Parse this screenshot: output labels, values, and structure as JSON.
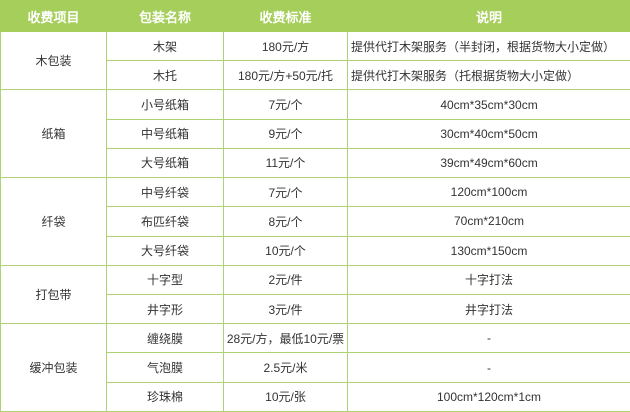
{
  "chart_data": {
    "type": "table",
    "title": "",
    "headers": [
      "收费项目",
      "包装名称",
      "收费标准",
      "说明"
    ],
    "groups": [
      {
        "item": "木包装",
        "rows": [
          {
            "name": "木架",
            "price": "180元/方",
            "note": "提供代打木架服务（半封闭，根据货物大小定做）"
          },
          {
            "name": "木托",
            "price": "180元/方+50元/托",
            "note": "提供代打木架服务（托根据货物大小定做）"
          }
        ]
      },
      {
        "item": "纸箱",
        "rows": [
          {
            "name": "小号纸箱",
            "price": "7元/个",
            "note": "40cm*35cm*30cm"
          },
          {
            "name": "中号纸箱",
            "price": "9元/个",
            "note": "30cm*40cm*50cm"
          },
          {
            "name": "大号纸箱",
            "price": "11元/个",
            "note": "39cm*49cm*60cm"
          }
        ]
      },
      {
        "item": "纤袋",
        "rows": [
          {
            "name": "中号纤袋",
            "price": "7元/个",
            "note": "120cm*100cm"
          },
          {
            "name": "布匹纤袋",
            "price": "8元/个",
            "note": "70cm*210cm"
          },
          {
            "name": "大号纤袋",
            "price": "10元/个",
            "note": "130cm*150cm"
          }
        ]
      },
      {
        "item": "打包带",
        "rows": [
          {
            "name": "十字型",
            "price": "2元/件",
            "note": "十字打法"
          },
          {
            "name": "井字形",
            "price": "3元/件",
            "note": "井字打法"
          }
        ]
      },
      {
        "item": "缓冲包装",
        "rows": [
          {
            "name": "缠绕膜",
            "price": "28元/方，最低10元/票",
            "note": "-"
          },
          {
            "name": "气泡膜",
            "price": "2.5元/米",
            "note": "-"
          },
          {
            "name": "珍珠棉",
            "price": "10元/张",
            "note": "100cm*120cm*1cm"
          }
        ]
      }
    ],
    "colors": {
      "header_bg": "#a5ce5a",
      "header_text": "#ffffff",
      "border": "#aed173",
      "body_text": "#333333",
      "cell_bg": "#ffffff"
    }
  }
}
